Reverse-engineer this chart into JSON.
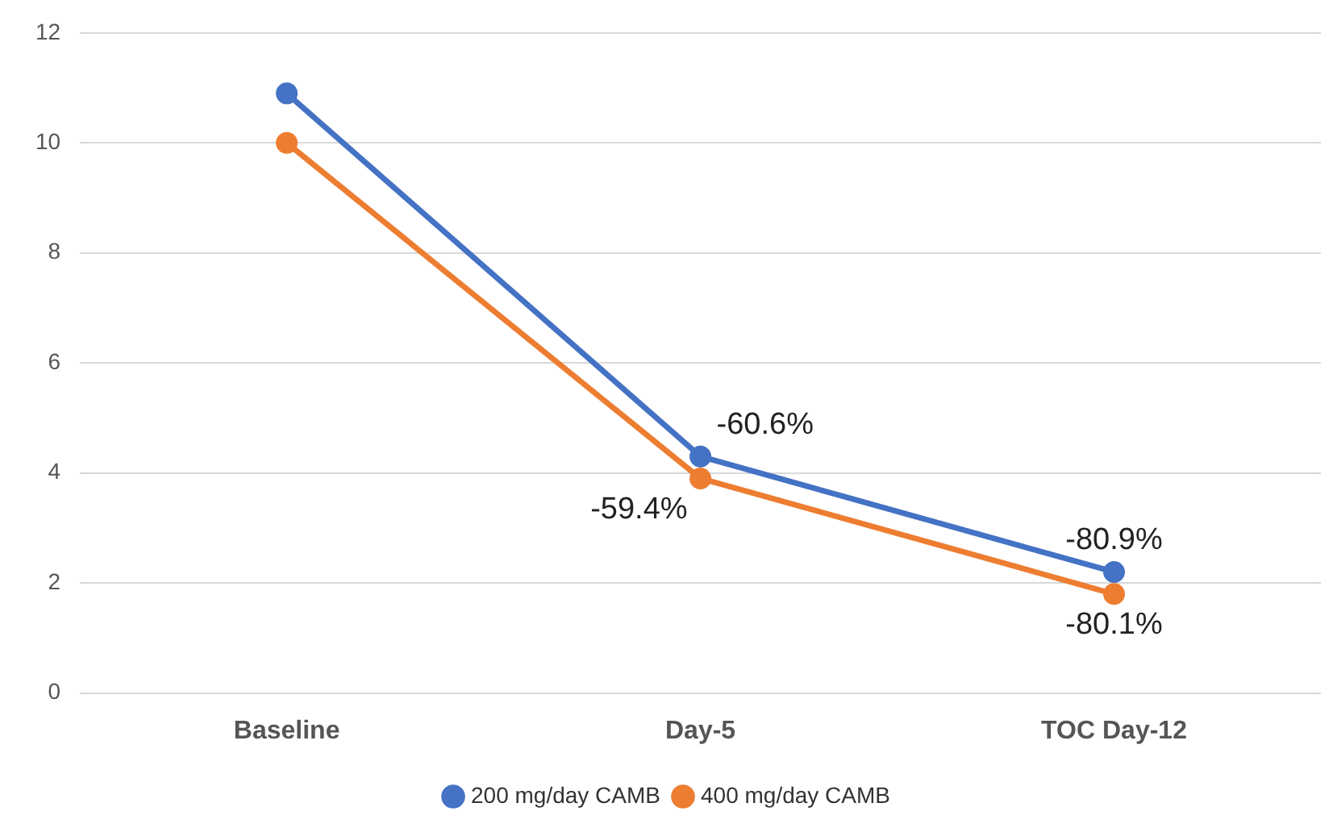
{
  "chart_data": {
    "type": "line",
    "categories": [
      "Baseline",
      "Day-5",
      "TOC Day-12"
    ],
    "series": [
      {
        "name": "200 mg/day CAMB",
        "color": "#4472c4",
        "values": [
          10.9,
          4.3,
          2.2
        ]
      },
      {
        "name": "400 mg/day CAMB",
        "color": "#ed7d31",
        "values": [
          10.0,
          3.9,
          1.8
        ]
      }
    ],
    "annotations": [
      {
        "text": "-60.6%",
        "x": "Day-5",
        "y": 4.3
      },
      {
        "text": "-80.9%",
        "x": "TOC Day-12",
        "y": 2.2
      },
      {
        "text": "-59.4%",
        "x": "Day-5",
        "y": 3.9
      },
      {
        "text": "-80.1%",
        "x": "TOC Day-12",
        "y": 1.8
      }
    ],
    "ylim": [
      0,
      12
    ],
    "yticks": [
      0,
      2,
      4,
      6,
      8,
      10,
      12
    ],
    "grid": "y",
    "legend": "bottom",
    "marker": "circle",
    "line_style": "solid"
  }
}
